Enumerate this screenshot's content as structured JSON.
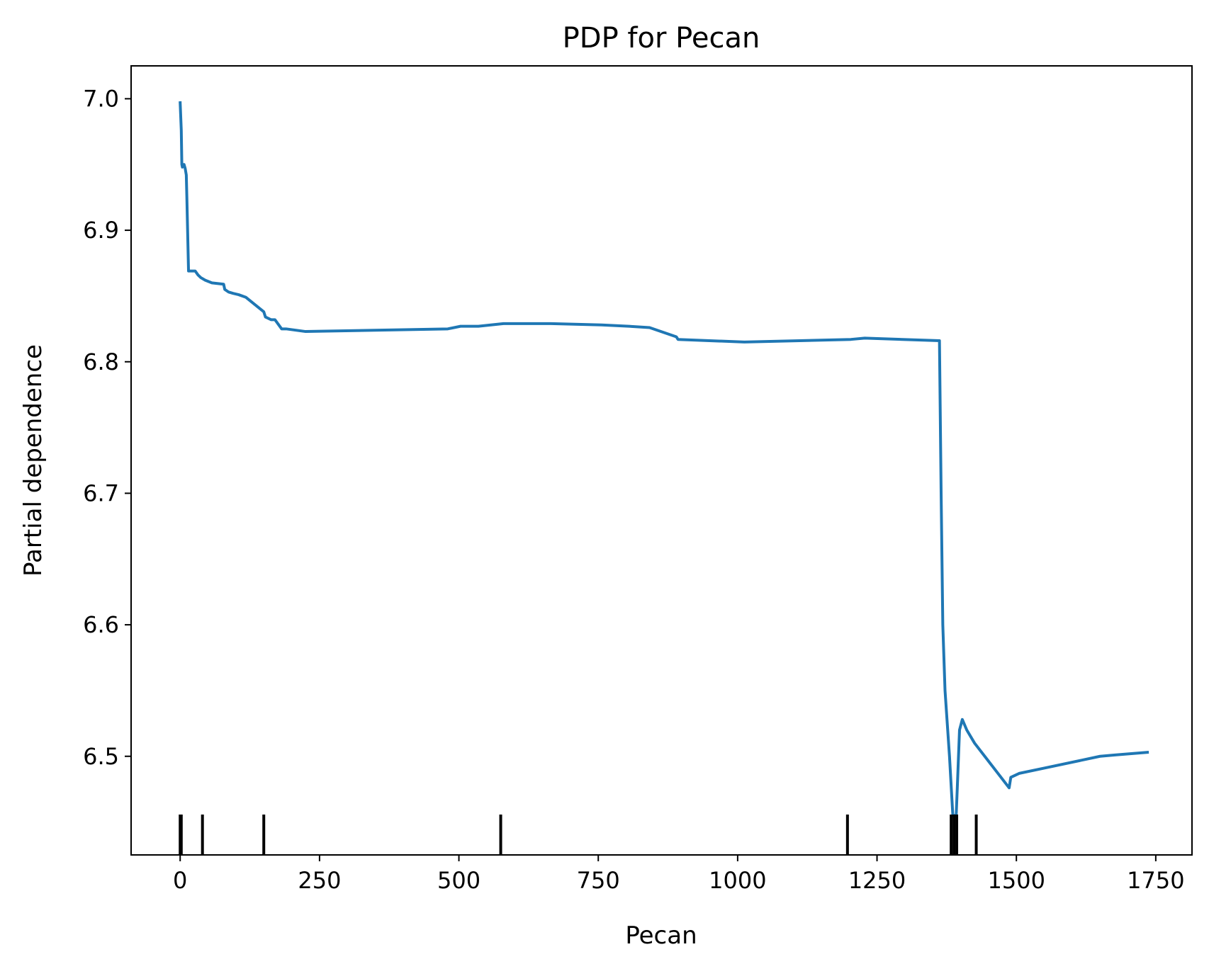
{
  "chart_data": {
    "type": "line",
    "title": "PDP for Pecan",
    "xlabel": "Pecan",
    "ylabel": "Partial dependence",
    "xlim": [
      -88,
      1815
    ],
    "ylim": [
      6.425,
      7.025
    ],
    "xticks": [
      0,
      250,
      500,
      750,
      1000,
      1250,
      1500,
      1750
    ],
    "xtick_labels": [
      "0",
      "250",
      "500",
      "750",
      "1000",
      "1250",
      "1500",
      "1750"
    ],
    "yticks": [
      6.5,
      6.6,
      6.7,
      6.8,
      6.9,
      7.0
    ],
    "ytick_labels": [
      "6.5",
      "6.6",
      "6.7",
      "6.8",
      "6.9",
      "7.0"
    ],
    "grid": false,
    "line_color": "#1f77b4",
    "series": [
      {
        "x": [
          0,
          2,
          3,
          4,
          7,
          9,
          11,
          12,
          15,
          18,
          27,
          32,
          37,
          45,
          57,
          78,
          80,
          87,
          95,
          105,
          118,
          150,
          153,
          163,
          170,
          182,
          190,
          225,
          480,
          503,
          535,
          580,
          608,
          665,
          756,
          805,
          842,
          890,
          893,
          1012,
          1203,
          1228,
          1362,
          1365,
          1368,
          1372,
          1380,
          1386,
          1392,
          1394,
          1398,
          1403,
          1411,
          1425,
          1487,
          1490,
          1505,
          1550,
          1650,
          1677,
          1735
        ],
        "y": [
          6.997,
          6.976,
          6.95,
          6.948,
          6.95,
          6.947,
          6.942,
          6.925,
          6.869,
          6.869,
          6.869,
          6.866,
          6.864,
          6.862,
          6.86,
          6.859,
          6.855,
          6.853,
          6.852,
          6.851,
          6.849,
          6.838,
          6.834,
          6.832,
          6.832,
          6.825,
          6.825,
          6.823,
          6.825,
          6.827,
          6.827,
          6.829,
          6.829,
          6.829,
          6.828,
          6.827,
          6.826,
          6.819,
          6.817,
          6.815,
          6.817,
          6.818,
          6.816,
          6.7,
          6.6,
          6.55,
          6.5,
          6.455,
          6.455,
          6.476,
          6.52,
          6.528,
          6.52,
          6.51,
          6.476,
          6.484,
          6.487,
          6.491,
          6.5,
          6.501,
          6.503
        ]
      }
    ],
    "rug_ticks": [
      0,
      2,
      40,
      150,
      575,
      1197,
      1383,
      1388,
      1393,
      1428
    ]
  }
}
